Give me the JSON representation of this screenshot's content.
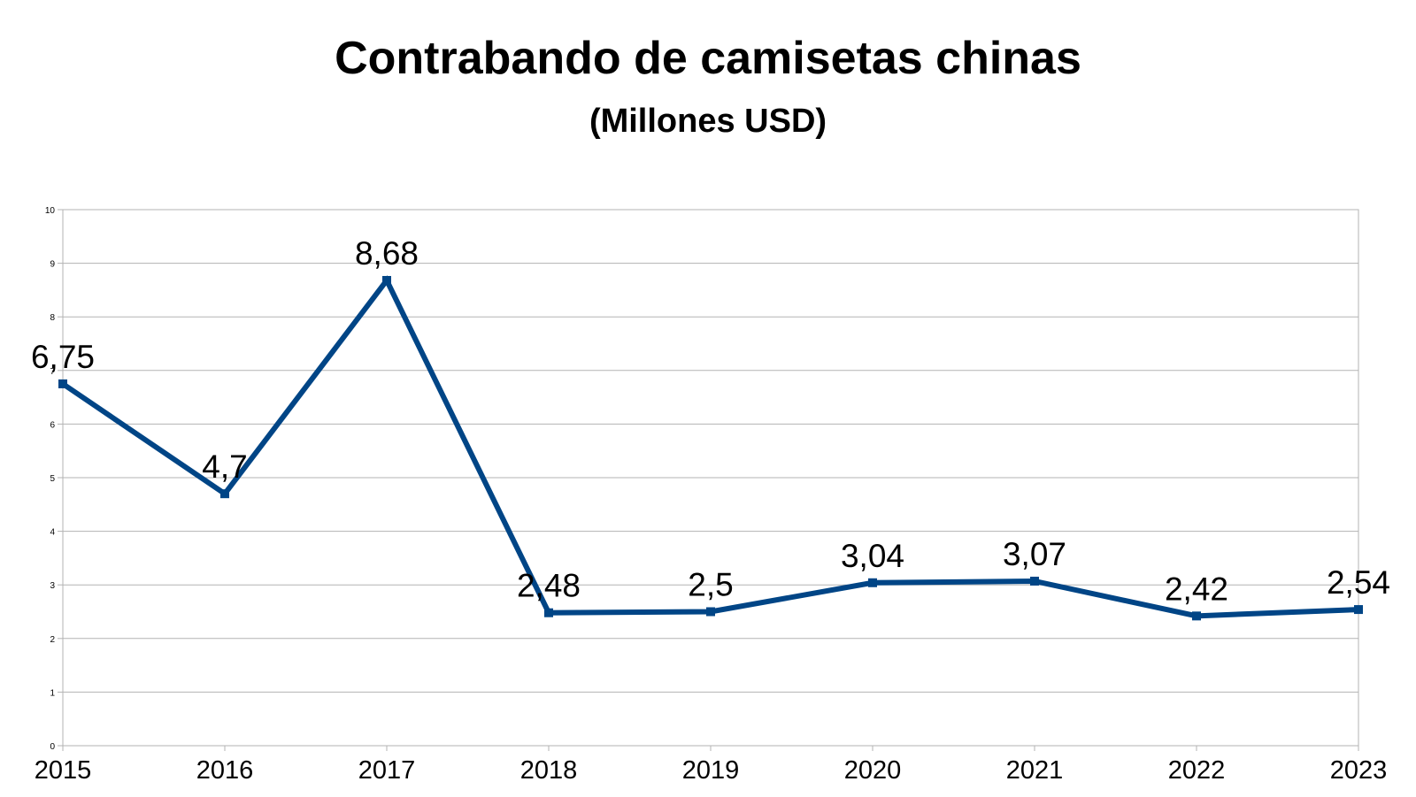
{
  "chart_data": {
    "type": "line",
    "title": "Contrabando de camisetas chinas",
    "subtitle": "(Millones USD)",
    "categories": [
      "2015",
      "2016",
      "2017",
      "2018",
      "2019",
      "2020",
      "2021",
      "2022",
      "2023"
    ],
    "series": [
      {
        "values": [
          6.75,
          4.7,
          8.68,
          2.48,
          2.5,
          3.04,
          3.07,
          2.42,
          2.54
        ],
        "labels": [
          "6,75",
          "4,7",
          "8,68",
          "2,48",
          "2,5",
          "3,04",
          "3,07",
          "2,42",
          "2,54"
        ],
        "color": "#004586"
      }
    ],
    "yticks": [
      "0",
      "1",
      "2",
      "3",
      "4",
      "5",
      "6",
      "7",
      "8",
      "9",
      "10"
    ],
    "ylim": [
      0,
      10
    ],
    "grid": true,
    "legend": "none",
    "xlabel": "",
    "ylabel": ""
  }
}
